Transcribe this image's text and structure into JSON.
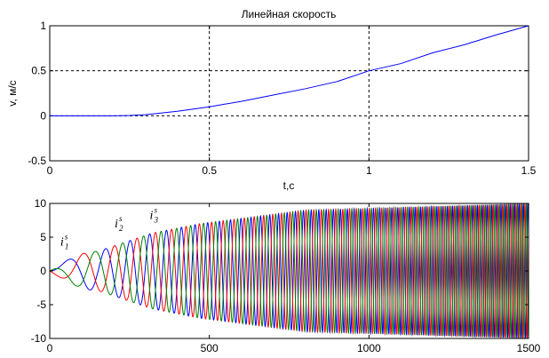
{
  "chart_data": [
    {
      "type": "line",
      "title": "Линейная скорость",
      "xlabel": "t,c",
      "ylabel": "v, м/c",
      "xlim": [
        0,
        1.5
      ],
      "ylim": [
        -0.5,
        1
      ],
      "xticks": [
        "0",
        "0.5",
        "1",
        "1.5"
      ],
      "yticks": [
        "-0.5",
        "0",
        "0.5",
        "1"
      ],
      "grid": "dashed",
      "series": [
        {
          "color": "#0000ff",
          "x": [
            0,
            0.1,
            0.2,
            0.25,
            0.3,
            0.4,
            0.5,
            0.6,
            0.7,
            0.8,
            0.9,
            1.0,
            1.1,
            1.2,
            1.3,
            1.4,
            1.5
          ],
          "y": [
            0,
            0,
            0,
            0.003,
            0.012,
            0.05,
            0.1,
            0.16,
            0.23,
            0.3,
            0.38,
            0.5,
            0.58,
            0.7,
            0.79,
            0.9,
            1.0
          ]
        }
      ]
    },
    {
      "type": "line",
      "title": "",
      "xlabel": "",
      "ylabel": "",
      "xlim": [
        0,
        1500
      ],
      "ylim": [
        -10,
        10
      ],
      "xticks": [
        "0",
        "500",
        "1000",
        "1500"
      ],
      "yticks": [
        "-10",
        "-5",
        "0",
        "5",
        "10"
      ],
      "grid": "off",
      "annotations": [
        {
          "text": "i",
          "sup": "s",
          "sub": "1",
          "x": 150,
          "y": 3.2
        },
        {
          "text": "i",
          "sup": "s",
          "sub": "2",
          "x": 320,
          "y": 5.9
        },
        {
          "text": "i",
          "sup": "s",
          "sub": "3",
          "x": 430,
          "y": 7.2
        }
      ],
      "series": [
        {
          "color": "#0000ff",
          "phase_deg": 0,
          "x": [
            0,
            150,
            320,
            470,
            1500
          ],
          "y": [
            0,
            2.9,
            -5.6,
            7.0,
            10.0
          ]
        },
        {
          "color": "#ff0000",
          "phase_deg": -120,
          "x": [
            0,
            100,
            260,
            440,
            1500
          ],
          "y": [
            0,
            2.0,
            -5.3,
            6.6,
            10.0
          ]
        },
        {
          "color": "#008000",
          "phase_deg": 120,
          "x": [
            0,
            100,
            310,
            550,
            1500
          ],
          "y": [
            0,
            -2.0,
            5.3,
            7.2,
            10.0
          ]
        }
      ]
    }
  ]
}
